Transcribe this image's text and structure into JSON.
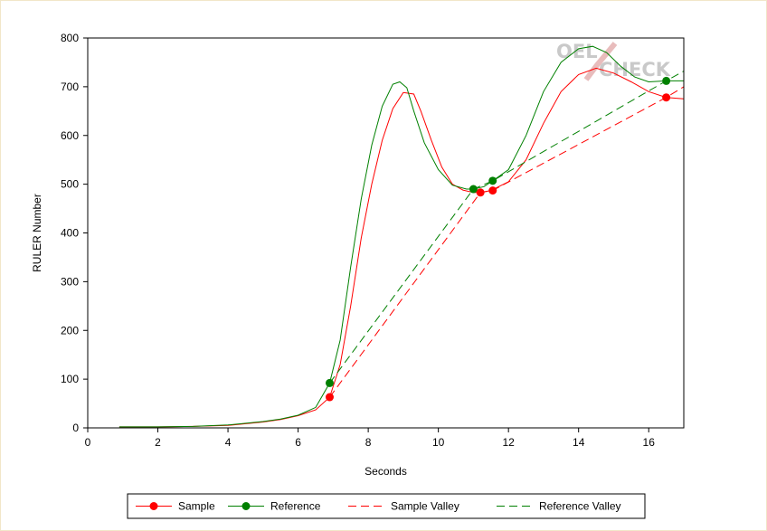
{
  "chart_data": {
    "type": "line",
    "xlabel": "Seconds",
    "ylabel": "RULER Number",
    "xlim": [
      0,
      17
    ],
    "ylim": [
      0,
      800
    ],
    "xticks": [
      0,
      2,
      4,
      6,
      8,
      10,
      12,
      14,
      16
    ],
    "yticks": [
      0,
      100,
      200,
      300,
      400,
      500,
      600,
      700,
      800
    ],
    "grid": false,
    "legend_position": "bottom",
    "watermark": {
      "line1": "OEL",
      "line2": "CHECK"
    },
    "colors": {
      "sample": "#ff0000",
      "reference": "#008000"
    },
    "series": [
      {
        "name": "Sample",
        "style": "solid",
        "x": [
          0.9,
          2,
          3,
          4,
          5,
          5.5,
          6,
          6.5,
          6.9,
          7.2,
          7.5,
          7.8,
          8.1,
          8.4,
          8.7,
          9.0,
          9.3,
          9.5,
          9.8,
          10.1,
          10.4,
          10.7,
          11.0,
          11.2,
          11.5,
          12.0,
          12.5,
          13.0,
          13.5,
          14.0,
          14.5,
          15.0,
          15.5,
          16.0,
          16.5,
          17.0
        ],
        "y": [
          2,
          2,
          3,
          5,
          12,
          17,
          25,
          37,
          63,
          130,
          250,
          390,
          500,
          590,
          655,
          688,
          685,
          650,
          590,
          535,
          500,
          488,
          483,
          483,
          487,
          505,
          550,
          625,
          690,
          725,
          738,
          728,
          710,
          690,
          678,
          675
        ],
        "markers": {
          "x": [
            6.9,
            11.2,
            11.55,
            16.5
          ],
          "y": [
            63,
            483,
            487,
            678
          ]
        }
      },
      {
        "name": "Reference",
        "style": "solid",
        "x": [
          0.9,
          2,
          3,
          4,
          5,
          5.5,
          6,
          6.5,
          6.9,
          7.2,
          7.5,
          7.8,
          8.1,
          8.4,
          8.7,
          8.9,
          9.1,
          9.3,
          9.6,
          10.0,
          10.4,
          10.8,
          11.0,
          11.3,
          11.55,
          12.0,
          12.5,
          13.0,
          13.5,
          14.0,
          14.4,
          14.8,
          15.2,
          15.6,
          16.0,
          16.5,
          17.0
        ],
        "y": [
          2,
          2,
          3,
          6,
          13,
          18,
          26,
          42,
          92,
          180,
          330,
          470,
          580,
          660,
          705,
          710,
          698,
          650,
          585,
          530,
          498,
          490,
          490,
          495,
          507,
          530,
          600,
          690,
          750,
          778,
          783,
          770,
          742,
          720,
          710,
          712,
          712
        ],
        "markers": {
          "x": [
            6.9,
            11.0,
            11.55,
            16.5
          ],
          "y": [
            92,
            490,
            507,
            712
          ]
        }
      },
      {
        "name": "Sample Valley",
        "style": "dashed",
        "x": [
          6.9,
          11.2,
          11.55,
          16.5,
          17.0
        ],
        "y": [
          63,
          483,
          487,
          678,
          700
        ]
      },
      {
        "name": "Reference Valley",
        "style": "dashed",
        "x": [
          6.9,
          11.0,
          11.55,
          16.5,
          17.0
        ],
        "y": [
          92,
          490,
          507,
          712,
          732
        ]
      }
    ]
  }
}
